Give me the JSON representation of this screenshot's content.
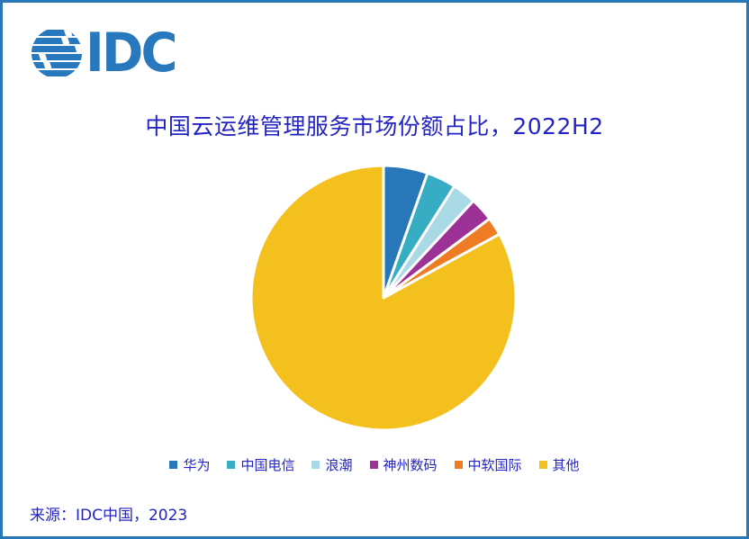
{
  "logo": {
    "text": "IDC",
    "color": "#2878BE"
  },
  "title": {
    "text": "中国云运维管理服务市场份额占比，2022H2",
    "color": "#2424C4"
  },
  "source": {
    "text": "来源：IDC中国，2023"
  },
  "frame": {
    "border_color": "#2878B8",
    "background": "#ffffff"
  },
  "chart_data": {
    "type": "pie",
    "title": "中国云运维管理服务市场份额占比，2022H2",
    "unit": "percent_market_share",
    "start_angle_deg": 0,
    "direction": "clockwise",
    "slice_gap_color": "#ffffff",
    "legend_position": "bottom",
    "data_labels": false,
    "series": [
      {
        "name": "华为",
        "value": 5.4,
        "color": "#2878B9"
      },
      {
        "name": "中国电信",
        "value": 3.6,
        "color": "#36ADC3"
      },
      {
        "name": "浪潮",
        "value": 2.9,
        "color": "#A9D9E5"
      },
      {
        "name": "神州数码",
        "value": 2.9,
        "color": "#9C3295"
      },
      {
        "name": "中软国际",
        "value": 2.2,
        "color": "#EE7C25"
      },
      {
        "name": "其他",
        "value": 83.0,
        "color": "#F3C01D"
      }
    ]
  }
}
